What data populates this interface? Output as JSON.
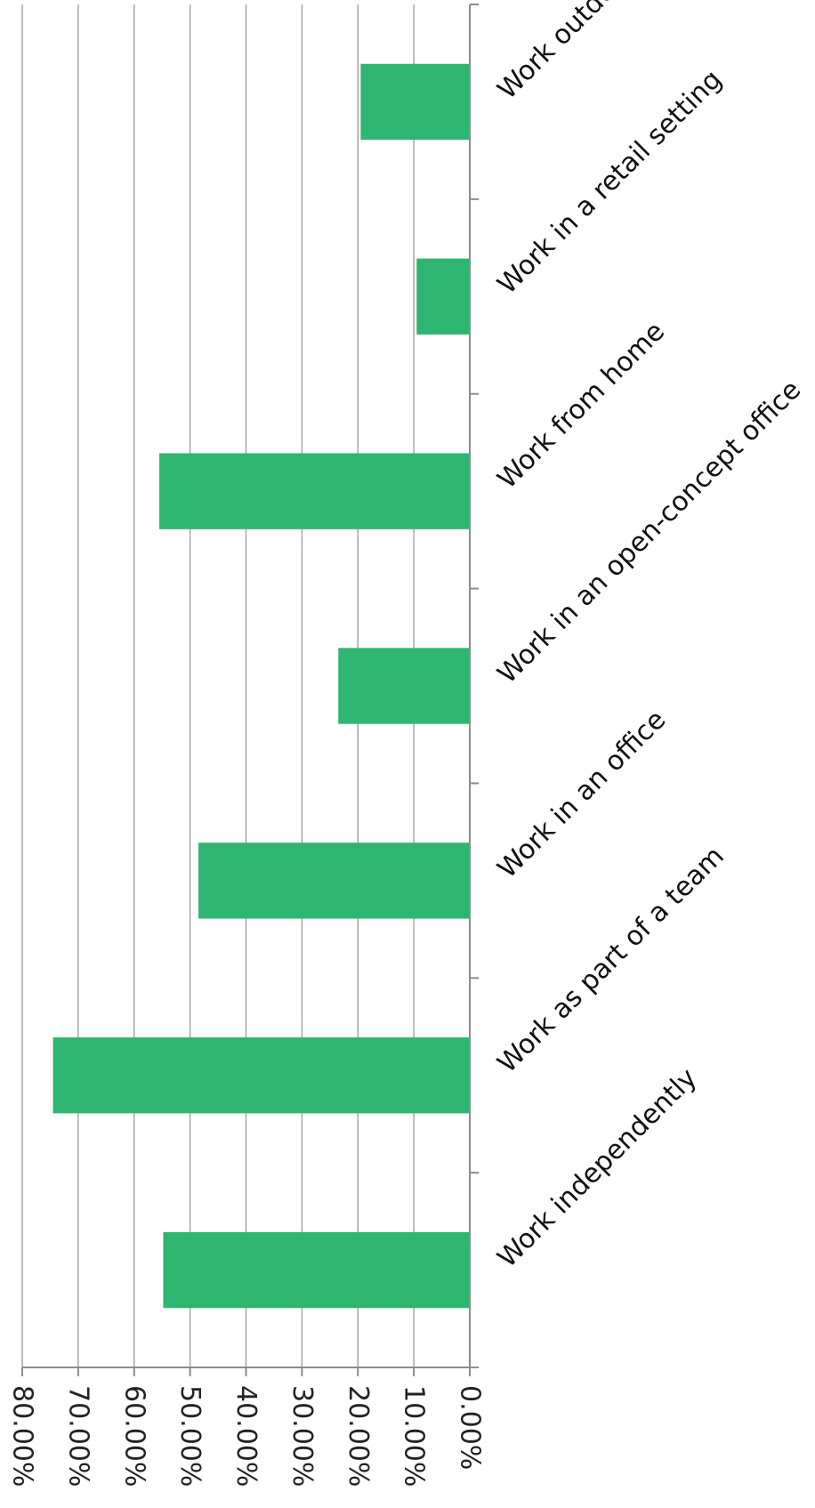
{
  "chart_data": {
    "type": "bar",
    "orientation": "horizontal",
    "categories": [
      "Work outdoors",
      "Work in a retail setting",
      "Work from home",
      "Work in an open-concept office",
      "Work in an office",
      "Work as part of a team",
      "Work independently"
    ],
    "values": [
      19.5,
      9.5,
      55.5,
      23.5,
      48.5,
      74.5,
      54.8
    ],
    "xlim": [
      0,
      80
    ],
    "ticks": [
      "0.00%",
      "10.00%",
      "20.00%",
      "30.00%",
      "40.00%",
      "50.00%",
      "60.00%",
      "70.00%",
      "80.00%"
    ],
    "tick_values": [
      0,
      10,
      20,
      30,
      40,
      50,
      60,
      70,
      80
    ],
    "grid": true,
    "bar_color": "#2eb670",
    "gridline_color": "#a6a6a6",
    "title": "",
    "xlabel": "",
    "ylabel": ""
  }
}
